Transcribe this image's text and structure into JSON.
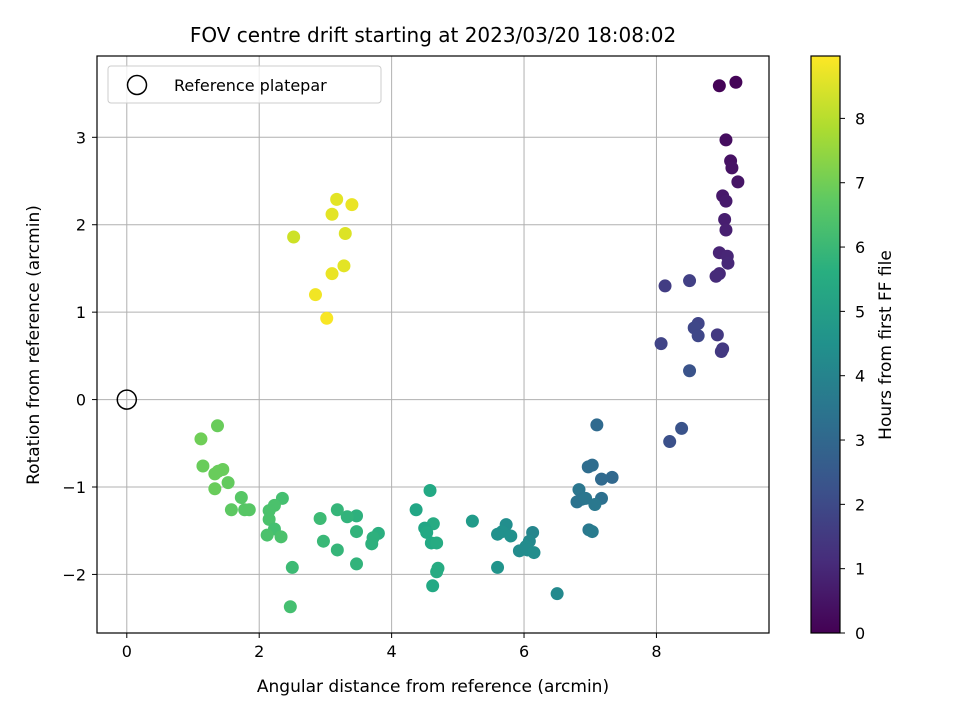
{
  "chart_data": {
    "type": "scatter",
    "title": "FOV centre drift starting at 2023/03/20 18:08:02",
    "xlabel": "Angular distance from reference (arcmin)",
    "ylabel": "Rotation from reference (arcmin)",
    "xlim": [
      -0.45,
      9.7
    ],
    "ylim": [
      -2.67,
      3.93
    ],
    "xticks": [
      0,
      2,
      4,
      6,
      8
    ],
    "yticks": [
      -2,
      -1,
      0,
      1,
      2,
      3
    ],
    "xtick_labels": [
      "0",
      "2",
      "4",
      "6",
      "8"
    ],
    "ytick_labels": [
      "−2",
      "−1",
      "0",
      "1",
      "2",
      "3"
    ],
    "grid": true,
    "legend": {
      "placement": "upper-left",
      "entries": [
        {
          "label": "Reference platepar",
          "marker": "open-circle"
        }
      ]
    },
    "reference_point": {
      "x": 0,
      "y": 0,
      "label": "Reference platepar"
    },
    "colorbar": {
      "label": "Hours from first FF file",
      "range": [
        0,
        8.97
      ],
      "ticks": [
        0,
        1,
        2,
        3,
        4,
        5,
        6,
        7,
        8
      ],
      "tick_labels": [
        "0",
        "1",
        "2",
        "3",
        "4",
        "5",
        "6",
        "7",
        "8"
      ],
      "colormap": "viridis"
    },
    "series": [
      {
        "points": [
          {
            "x": 8.95,
            "y": 3.59,
            "c": 0.05
          },
          {
            "x": 9.2,
            "y": 3.63,
            "c": 0.1
          },
          {
            "x": 9.05,
            "y": 2.97,
            "c": 0.3
          },
          {
            "x": 9.12,
            "y": 2.73,
            "c": 0.4
          },
          {
            "x": 9.14,
            "y": 2.65,
            "c": 0.45
          },
          {
            "x": 9.23,
            "y": 2.49,
            "c": 0.5
          },
          {
            "x": 9.0,
            "y": 2.33,
            "c": 0.6
          },
          {
            "x": 9.05,
            "y": 2.27,
            "c": 0.65
          },
          {
            "x": 9.03,
            "y": 2.06,
            "c": 0.75
          },
          {
            "x": 9.05,
            "y": 1.94,
            "c": 0.8
          },
          {
            "x": 8.95,
            "y": 1.68,
            "c": 0.9
          },
          {
            "x": 9.07,
            "y": 1.64,
            "c": 0.95
          },
          {
            "x": 9.08,
            "y": 1.56,
            "c": 1.0
          },
          {
            "x": 8.95,
            "y": 1.44,
            "c": 1.05
          },
          {
            "x": 8.9,
            "y": 1.41,
            "c": 1.1
          },
          {
            "x": 8.13,
            "y": 1.3,
            "c": 1.6
          },
          {
            "x": 8.5,
            "y": 1.36,
            "c": 1.7
          },
          {
            "x": 8.63,
            "y": 0.87,
            "c": 1.85
          },
          {
            "x": 8.57,
            "y": 0.82,
            "c": 1.9
          },
          {
            "x": 8.63,
            "y": 0.73,
            "c": 1.9
          },
          {
            "x": 8.92,
            "y": 0.74,
            "c": 1.5
          },
          {
            "x": 8.98,
            "y": 0.55,
            "c": 1.5
          },
          {
            "x": 9.0,
            "y": 0.58,
            "c": 1.5
          },
          {
            "x": 8.07,
            "y": 0.64,
            "c": 1.8
          },
          {
            "x": 8.5,
            "y": 0.33,
            "c": 2.3
          },
          {
            "x": 8.2,
            "y": -0.48,
            "c": 2.2
          },
          {
            "x": 8.38,
            "y": -0.33,
            "c": 2.3
          },
          {
            "x": 7.1,
            "y": -0.29,
            "c": 3.1
          },
          {
            "x": 6.97,
            "y": -0.77,
            "c": 3.2
          },
          {
            "x": 7.03,
            "y": -0.75,
            "c": 3.2
          },
          {
            "x": 7.33,
            "y": -0.89,
            "c": 3.0
          },
          {
            "x": 7.17,
            "y": -0.91,
            "c": 3.1
          },
          {
            "x": 6.83,
            "y": -1.03,
            "c": 3.5
          },
          {
            "x": 6.87,
            "y": -1.14,
            "c": 3.4
          },
          {
            "x": 6.8,
            "y": -1.17,
            "c": 3.4
          },
          {
            "x": 6.93,
            "y": -1.13,
            "c": 3.5
          },
          {
            "x": 7.17,
            "y": -1.13,
            "c": 3.3
          },
          {
            "x": 7.07,
            "y": -1.2,
            "c": 3.6
          },
          {
            "x": 6.98,
            "y": -1.49,
            "c": 3.6
          },
          {
            "x": 7.03,
            "y": -1.51,
            "c": 3.7
          },
          {
            "x": 6.13,
            "y": -1.52,
            "c": 4.1
          },
          {
            "x": 6.08,
            "y": -1.62,
            "c": 4.2
          },
          {
            "x": 6.03,
            "y": -1.68,
            "c": 4.3
          },
          {
            "x": 5.93,
            "y": -1.73,
            "c": 4.3
          },
          {
            "x": 6.05,
            "y": -1.72,
            "c": 4.3
          },
          {
            "x": 6.15,
            "y": -1.75,
            "c": 4.4
          },
          {
            "x": 5.73,
            "y": -1.43,
            "c": 4.4
          },
          {
            "x": 5.67,
            "y": -1.51,
            "c": 4.5
          },
          {
            "x": 5.6,
            "y": -1.54,
            "c": 4.5
          },
          {
            "x": 5.8,
            "y": -1.56,
            "c": 4.5
          },
          {
            "x": 5.6,
            "y": -1.92,
            "c": 4.6
          },
          {
            "x": 6.5,
            "y": -2.22,
            "c": 4.2
          },
          {
            "x": 5.22,
            "y": -1.39,
            "c": 4.9
          },
          {
            "x": 4.37,
            "y": -1.26,
            "c": 5.3
          },
          {
            "x": 4.58,
            "y": -1.04,
            "c": 5.4
          },
          {
            "x": 4.63,
            "y": -1.42,
            "c": 5.5
          },
          {
            "x": 4.5,
            "y": -1.47,
            "c": 5.3
          },
          {
            "x": 4.53,
            "y": -1.52,
            "c": 5.4
          },
          {
            "x": 4.6,
            "y": -1.64,
            "c": 5.4
          },
          {
            "x": 4.68,
            "y": -1.64,
            "c": 5.5
          },
          {
            "x": 4.7,
            "y": -1.93,
            "c": 5.5
          },
          {
            "x": 4.68,
            "y": -1.97,
            "c": 5.5
          },
          {
            "x": 4.62,
            "y": -2.13,
            "c": 5.4
          },
          {
            "x": 3.8,
            "y": -1.53,
            "c": 5.6
          },
          {
            "x": 3.72,
            "y": -1.58,
            "c": 5.7
          },
          {
            "x": 3.7,
            "y": -1.65,
            "c": 5.7
          },
          {
            "x": 3.47,
            "y": -1.33,
            "c": 5.7
          },
          {
            "x": 3.33,
            "y": -1.34,
            "c": 5.8
          },
          {
            "x": 3.18,
            "y": -1.26,
            "c": 5.9
          },
          {
            "x": 3.47,
            "y": -1.51,
            "c": 5.8
          },
          {
            "x": 3.18,
            "y": -1.72,
            "c": 5.9
          },
          {
            "x": 3.47,
            "y": -1.88,
            "c": 5.8
          },
          {
            "x": 2.92,
            "y": -1.36,
            "c": 6.1
          },
          {
            "x": 2.97,
            "y": -1.62,
            "c": 6.0
          },
          {
            "x": 2.5,
            "y": -1.92,
            "c": 6.1
          },
          {
            "x": 2.47,
            "y": -2.37,
            "c": 6.3
          },
          {
            "x": 2.35,
            "y": -1.13,
            "c": 6.3
          },
          {
            "x": 2.23,
            "y": -1.21,
            "c": 6.4
          },
          {
            "x": 2.15,
            "y": -1.27,
            "c": 6.4
          },
          {
            "x": 2.15,
            "y": -1.37,
            "c": 6.4
          },
          {
            "x": 2.23,
            "y": -1.48,
            "c": 6.3
          },
          {
            "x": 2.12,
            "y": -1.55,
            "c": 6.4
          },
          {
            "x": 2.33,
            "y": -1.57,
            "c": 6.4
          },
          {
            "x": 1.73,
            "y": -1.12,
            "c": 6.6
          },
          {
            "x": 1.78,
            "y": -1.26,
            "c": 6.6
          },
          {
            "x": 1.85,
            "y": -1.26,
            "c": 6.6
          },
          {
            "x": 1.58,
            "y": -1.26,
            "c": 6.7
          },
          {
            "x": 1.53,
            "y": -0.95,
            "c": 6.8
          },
          {
            "x": 1.45,
            "y": -0.8,
            "c": 6.9
          },
          {
            "x": 1.38,
            "y": -0.82,
            "c": 6.9
          },
          {
            "x": 1.33,
            "y": -0.85,
            "c": 6.9
          },
          {
            "x": 1.33,
            "y": -1.02,
            "c": 6.9
          },
          {
            "x": 1.15,
            "y": -0.76,
            "c": 6.9
          },
          {
            "x": 1.12,
            "y": -0.45,
            "c": 7.0
          },
          {
            "x": 1.37,
            "y": -0.3,
            "c": 6.9
          },
          {
            "x": 2.52,
            "y": 1.86,
            "c": 8.3
          },
          {
            "x": 3.17,
            "y": 2.29,
            "c": 8.6
          },
          {
            "x": 3.4,
            "y": 2.23,
            "c": 8.7
          },
          {
            "x": 3.1,
            "y": 2.12,
            "c": 8.6
          },
          {
            "x": 3.3,
            "y": 1.9,
            "c": 8.5
          },
          {
            "x": 3.28,
            "y": 1.53,
            "c": 8.6
          },
          {
            "x": 3.1,
            "y": 1.44,
            "c": 8.7
          },
          {
            "x": 2.85,
            "y": 1.2,
            "c": 8.8
          },
          {
            "x": 3.02,
            "y": 0.93,
            "c": 8.9
          }
        ]
      }
    ]
  }
}
